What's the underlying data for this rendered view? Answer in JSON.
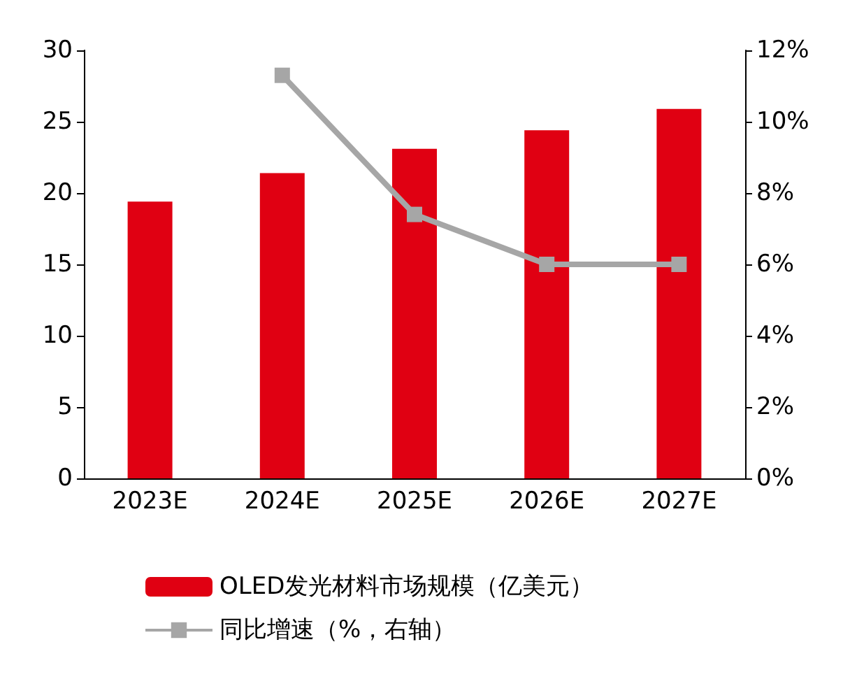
{
  "chart_data": {
    "type": "bar",
    "categories": [
      "2023E",
      "2024E",
      "2025E",
      "2026E",
      "2027E"
    ],
    "series": [
      {
        "name": "OLED发光材料市场规模（亿美元）",
        "color": "#e00012",
        "values": [
          19.4,
          21.4,
          23.1,
          24.4,
          25.9
        ]
      },
      {
        "name": "同比增速（%，右轴）",
        "type": "line",
        "axis": "y2",
        "color": "#a6a6a6",
        "marker": "square",
        "values": [
          null,
          11.3,
          7.4,
          6.0,
          6.0
        ]
      }
    ],
    "ylim": [
      0,
      30
    ],
    "yticks": [
      0,
      5,
      10,
      15,
      20,
      25,
      30
    ],
    "y2lim": [
      0,
      12
    ],
    "y2ticks": [
      {
        "value": 0,
        "label": "0%"
      },
      {
        "value": 2,
        "label": "2%"
      },
      {
        "value": 4,
        "label": "4%"
      },
      {
        "value": 6,
        "label": "6%"
      },
      {
        "value": 8,
        "label": "8%"
      },
      {
        "value": 10,
        "label": "10%"
      },
      {
        "value": 12,
        "label": "12%"
      }
    ],
    "grid": false,
    "legend": "bottom"
  }
}
